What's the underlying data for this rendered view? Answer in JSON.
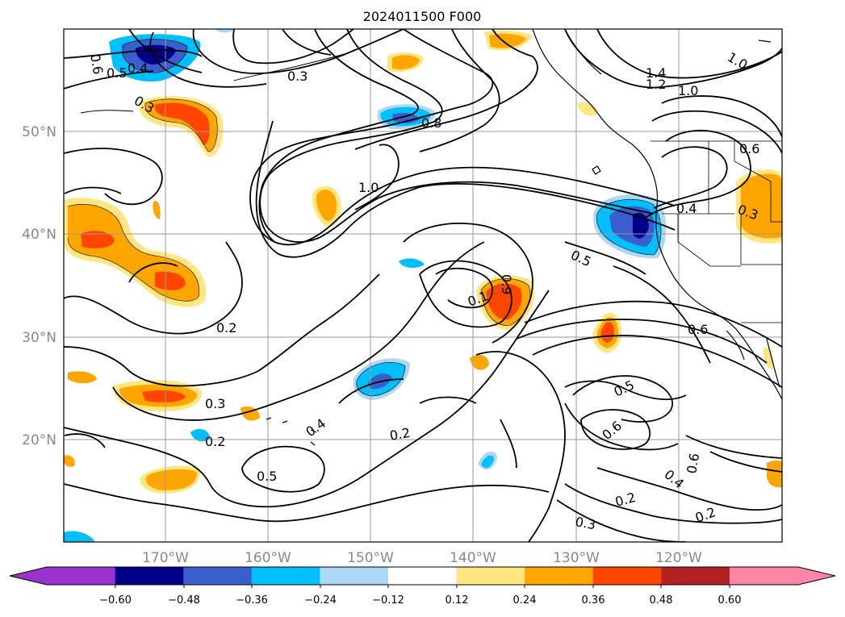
{
  "title": "2024011500 F000",
  "latitude_labels": [
    "50°N",
    "40°N",
    "30°N",
    "20°N"
  ],
  "longitude_labels": [
    "170°W",
    "160°W",
    "150°W",
    "140°W",
    "130°W",
    "120°W"
  ],
  "contour_labels": [
    "0.6",
    "0.5",
    "0.4",
    "0.3",
    "0.3",
    "1.4",
    "1.2",
    "1.0",
    "1.0",
    "0.8",
    "1.0",
    "0.6",
    "0.4",
    "0.3",
    "0.5",
    "0.1",
    "0.9",
    "0.2",
    "0.6",
    "0.3",
    "0.2",
    "0.4",
    "0.2",
    "0.5",
    "0.5",
    "0.6",
    "0.6",
    "0.4",
    "0.2",
    "0.3",
    "0.2"
  ],
  "colorbar": {
    "tick_labels": [
      "−0.60",
      "−0.48",
      "−0.36",
      "−0.24",
      "−0.12",
      "0.12",
      "0.24",
      "0.36",
      "0.48",
      "0.60"
    ],
    "colors": [
      "#9933cc",
      "#00008b",
      "#3a5fcd",
      "#00bfff",
      "#add8f5",
      "#ffffff",
      "#ffe680",
      "#ffa500",
      "#ff4500",
      "#b22222",
      "#ff85a8"
    ]
  }
}
